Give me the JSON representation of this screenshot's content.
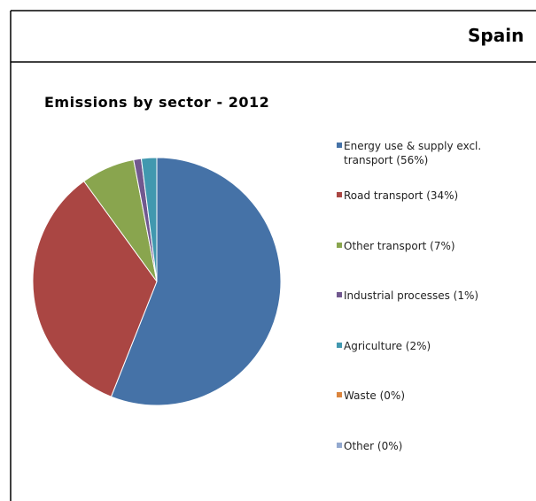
{
  "header": {
    "title": "Spain"
  },
  "chart_data": {
    "type": "pie",
    "title": "Emissions by sector - 2012",
    "categories": [
      "Energy use & supply excl. transport (56%)",
      "Road transport (34%)",
      "Other transport (7%)",
      "Industrial processes (1%)",
      "Agriculture  (2%)",
      "Waste (0%)",
      "Other (0%)"
    ],
    "values": [
      56,
      34,
      7,
      1,
      2,
      0,
      0
    ],
    "colors": [
      "#4572a7",
      "#aa4643",
      "#89a54e",
      "#71588f",
      "#4198af",
      "#db843d",
      "#93a9cf"
    ],
    "legend": "right"
  }
}
